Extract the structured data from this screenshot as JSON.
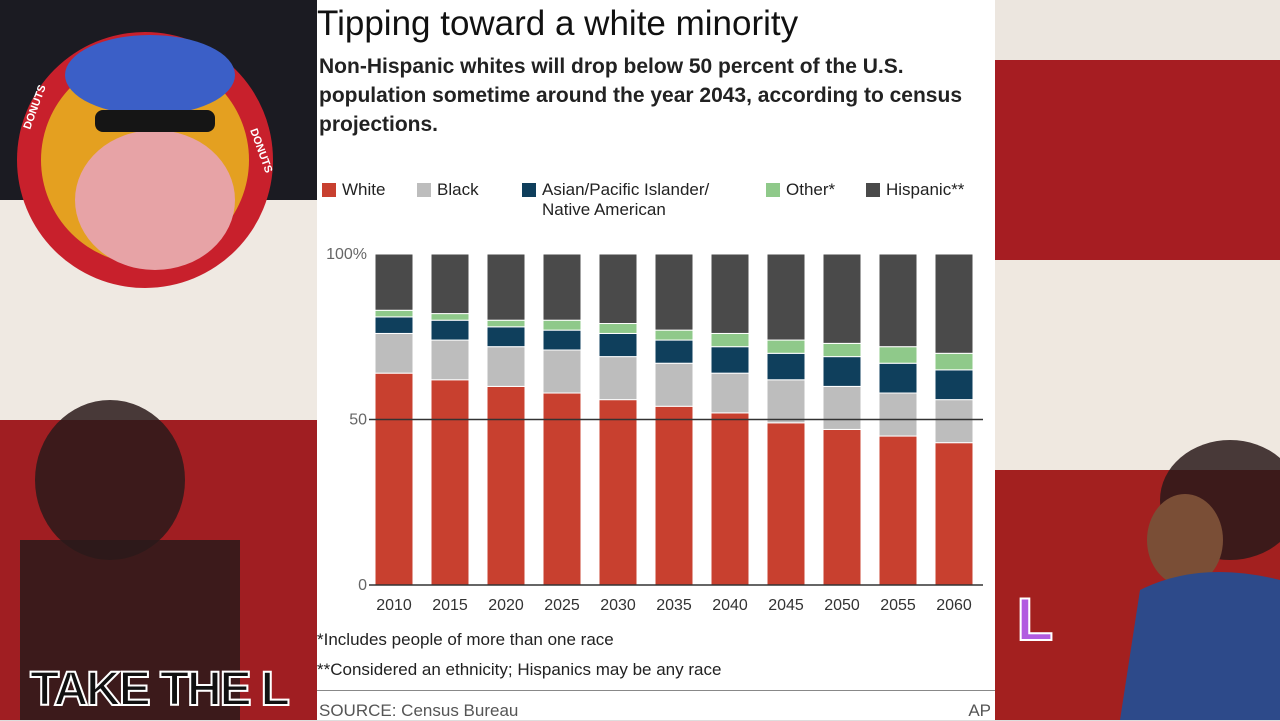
{
  "chart_data": {
    "type": "stacked_bar",
    "title": "Tipping toward a white minority",
    "subtitle": "Non-Hispanic whites will drop below 50 percent of the U.S. population sometime around the year 2043, according to census projections.",
    "categories": [
      "2010",
      "2015",
      "2020",
      "2025",
      "2030",
      "2035",
      "2040",
      "2045",
      "2050",
      "2055",
      "2060"
    ],
    "series": [
      {
        "name": "White",
        "color": "#c8402f",
        "values": [
          64,
          62,
          60,
          58,
          56,
          54,
          52,
          49,
          47,
          45,
          43
        ]
      },
      {
        "name": "Black",
        "color": "#bdbdbd",
        "values": [
          12,
          12,
          12,
          13,
          13,
          13,
          12,
          13,
          13,
          13,
          13
        ]
      },
      {
        "name": "Asian/Pacific Islander/ Native American",
        "color": "#0f3f5c",
        "values": [
          5,
          6,
          6,
          6,
          7,
          7,
          8,
          8,
          9,
          9,
          9
        ]
      },
      {
        "name": "Other*",
        "color": "#8fc98a",
        "values": [
          2,
          2,
          2,
          3,
          3,
          3,
          4,
          4,
          4,
          5,
          5
        ]
      },
      {
        "name": "Hispanic**",
        "color": "#4a4a4a",
        "values": [
          17,
          18,
          20,
          20,
          21,
          23,
          24,
          26,
          27,
          28,
          30
        ]
      }
    ],
    "ylim": [
      0,
      100
    ],
    "yticks": [
      0,
      50,
      {
        "value": 100,
        "label": "100%"
      }
    ],
    "grid": true
  },
  "footnotes": [
    "*Includes people of more than one race",
    "**Considered an ethnicity; Hispanics may be any race"
  ],
  "source": "SOURCE: Census Bureau",
  "credit": "AP",
  "stickers": {
    "donuts": "DONUTS",
    "take_the_l": "TAKE THE L",
    "l": "L"
  }
}
